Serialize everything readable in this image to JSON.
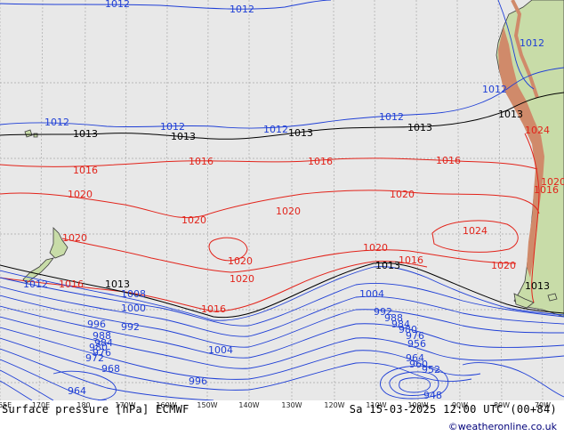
{
  "map": {
    "title": "Surface pressure [hPa] ECMWF",
    "valid_time": "Sa 15-03-2025 12:00 UTC (00+84)",
    "credit": "©weatheronline.co.uk",
    "colors": {
      "sea": "#e8e8e8",
      "land": "#c8dca8",
      "land_high": "#d08a6a",
      "isobar_low": "#1f3fd6",
      "isobar_mid": "#000000",
      "isobar_high": "#e2231a",
      "grid": "#a9a9a9",
      "coast": "#3b3b3b"
    },
    "lon_labels": [
      "165E",
      "170E",
      "180",
      "170W",
      "160W",
      "150W",
      "140W",
      "130W",
      "120W",
      "110W",
      "100W",
      "90W",
      "80W",
      "70W"
    ],
    "isobar_labels": {
      "l1012a": "1012",
      "l1012b": "1012",
      "l1012c": "1012",
      "l1012d": "1012",
      "l1012e": "1012",
      "l1012f": "1012",
      "l1012g": "1012",
      "l1012h": "1012",
      "l1012i": "1012",
      "l1013a": "1013",
      "l1013b": "1013",
      "l1013c": "1013",
      "l1013d": "1013",
      "l1013e": "1013",
      "l1013f": "1013",
      "l1013g": "1013",
      "l1013h": "1013",
      "l1016a": "1016",
      "l1016b": "1016",
      "l1016c": "1016",
      "l1016d": "1016",
      "l1016e": "1016",
      "l1016f": "1016",
      "l1016g": "1016",
      "l1016h": "1016",
      "l1020a": "1020",
      "l1020b": "1020",
      "l1020c": "1020",
      "l1020d": "1020",
      "l1020e": "1020",
      "l1020f": "1020",
      "l1020g": "1020",
      "l1020h": "1020",
      "l1020i": "1020",
      "l1020j": "1020",
      "l1024a": "1024",
      "l1024b": "1024",
      "l1008": "1008",
      "l1004a": "1004",
      "l1004b": "1004",
      "l1000": "1000",
      "l996a": "996",
      "l996b": "996",
      "l992a": "992",
      "l992b": "992",
      "l988a": "988",
      "l988b": "988",
      "l984a": "984",
      "l984b": "984",
      "l980a": "980",
      "l980b": "980",
      "l976a": "976",
      "l976b": "976",
      "l972": "972",
      "l968": "968",
      "l964a": "964",
      "l964b": "964",
      "l960": "960",
      "l956": "956",
      "l952": "952",
      "l948": "948"
    }
  }
}
